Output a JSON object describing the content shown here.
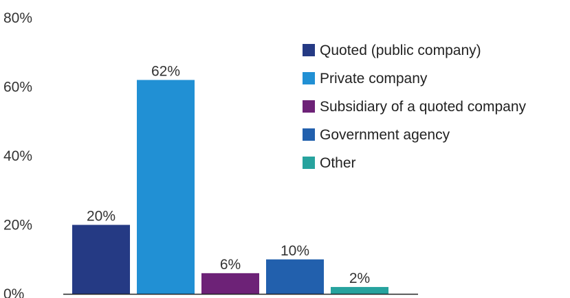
{
  "chart_data": {
    "type": "bar",
    "title": "",
    "xlabel": "",
    "ylabel": "",
    "ylim": [
      0,
      80
    ],
    "y_ticks": [
      "0%",
      "20%",
      "40%",
      "60%",
      "80%"
    ],
    "y_tick_values": [
      0,
      20,
      40,
      60,
      80
    ],
    "grid": false,
    "legend_position": "right",
    "categories": [
      "Quoted (public company)",
      "Private company",
      "Subsidiary of a quoted company",
      "Government agency",
      "Other"
    ],
    "values": [
      20,
      62,
      6,
      10,
      2
    ],
    "value_labels": [
      "20%",
      "62%",
      "6%",
      "10%",
      "2%"
    ],
    "colors": [
      "#253a84",
      "#2190d4",
      "#6d2277",
      "#2260ad",
      "#27a39e"
    ],
    "axis_color": "#222222"
  }
}
